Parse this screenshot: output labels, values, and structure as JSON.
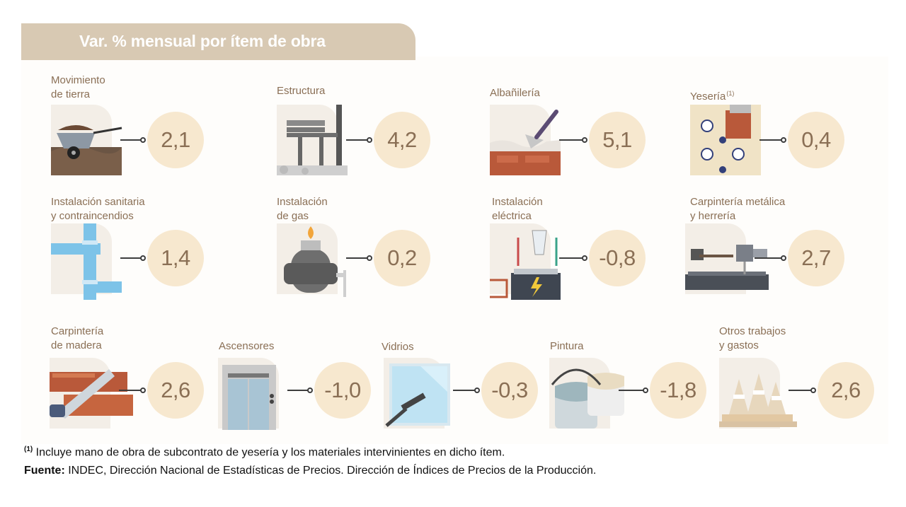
{
  "chart_data": {
    "type": "table",
    "title": "Var. % mensual por ítem de obra",
    "categories": [
      "Movimiento de tierra",
      "Estructura",
      "Albañilería",
      "Yesería",
      "Instalación sanitaria y contraincendios",
      "Instalación de gas",
      "Instalación eléctrica",
      "Carpintería metálica y herrería",
      "Carpintería de madera",
      "Ascensores",
      "Vidrios",
      "Pintura",
      "Otros trabajos y gastos"
    ],
    "values": [
      2.1,
      4.2,
      5.1,
      0.4,
      1.4,
      0.2,
      -0.8,
      2.7,
      2.6,
      -1.0,
      -0.3,
      -1.8,
      2.6
    ]
  },
  "title": "Var. % mensual por ítem de obra",
  "items": [
    {
      "l1": "Movimiento",
      "l2": "de tierra",
      "sup": "",
      "value": "2,1",
      "icon": "wheelbarrow-icon"
    },
    {
      "l1": "Estructura",
      "l2": "",
      "sup": "",
      "value": "4,2",
      "icon": "structure-icon"
    },
    {
      "l1": "Albañilería",
      "l2": "",
      "sup": "",
      "value": "5,1",
      "icon": "trowel-bricks-icon"
    },
    {
      "l1": "Yesería",
      "l2": "",
      "sup": "(1)",
      "value": "0,4",
      "icon": "plaster-wall-icon"
    },
    {
      "l1": "Instalación sanitaria",
      "l2": "y contraincendios",
      "sup": "",
      "value": "1,4",
      "icon": "water-pipes-icon"
    },
    {
      "l1": "Instalación",
      "l2": "de gas",
      "sup": "",
      "value": "0,2",
      "icon": "gas-tank-icon"
    },
    {
      "l1": "Instalación",
      "l2": "eléctrica",
      "sup": "",
      "value": "-0,8",
      "icon": "battery-icon"
    },
    {
      "l1": "Carpintería metálica",
      "l2": "y herrería",
      "sup": "",
      "value": "2,7",
      "icon": "hammer-drill-icon"
    },
    {
      "l1": "Carpintería",
      "l2": "de madera",
      "sup": "",
      "value": "2,6",
      "icon": "saw-wood-icon"
    },
    {
      "l1": "Ascensores",
      "l2": "",
      "sup": "",
      "value": "-1,0",
      "icon": "elevator-icon"
    },
    {
      "l1": "Vidrios",
      "l2": "",
      "sup": "",
      "value": "-0,3",
      "icon": "window-squeegee-icon"
    },
    {
      "l1": "Pintura",
      "l2": "",
      "sup": "",
      "value": "-1,8",
      "icon": "paint-buckets-icon"
    },
    {
      "l1": "Otros trabajos",
      "l2": "y gastos",
      "sup": "",
      "value": "2,6",
      "icon": "traffic-cones-icon"
    }
  ],
  "footnote": {
    "marker": "(1)",
    "text": " Incluye mano de obra de subcontrato de yesería y los materiales intervinientes en dicho ítem."
  },
  "source": {
    "label": "Fuente:",
    "text": " INDEC, Dirección Nacional de Estadísticas de Precios. Dirección de Índices de Precios de la Producción."
  },
  "colors": {
    "accent": "#d8c9b3",
    "label": "#8a6f55",
    "circle": "#f7e8cf",
    "card": "#f3eee7",
    "brick": "#b9593a",
    "pipe": "#7dc3e8"
  }
}
